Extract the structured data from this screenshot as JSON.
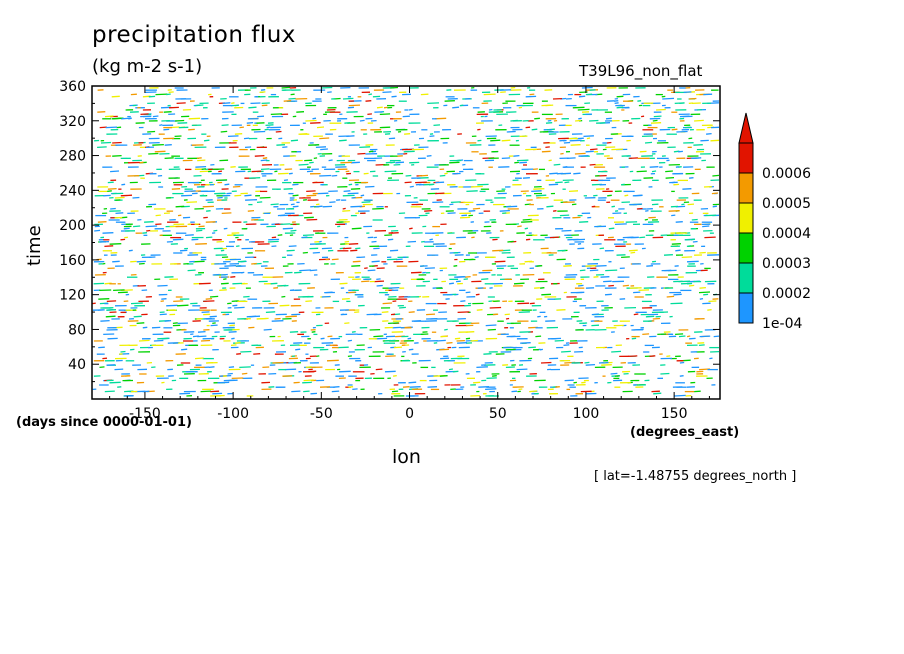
{
  "chart_data": {
    "type": "heatmap",
    "title": "precipitation flux",
    "units": "(kg m-2 s-1)",
    "experiment": "T39L96_non_flat",
    "xlabel": "lon",
    "ylabel": "time",
    "x_units": "(degrees_east)",
    "y_units": "(days since 0000-01-01)",
    "annotation": "[ lat=-1.48755 degrees_north ]",
    "xlim": [
      -180,
      176
    ],
    "ylim": [
      0,
      360
    ],
    "x_ticks": [
      -150,
      -100,
      -50,
      0,
      50,
      100,
      150
    ],
    "x_tick_labels": [
      "-150",
      "-100",
      "-50",
      "0",
      "50",
      "100",
      "150"
    ],
    "y_ticks": [
      40,
      80,
      120,
      160,
      200,
      240,
      280,
      320,
      360
    ],
    "y_tick_labels": [
      "40",
      "80",
      "120",
      "160",
      "200",
      "240",
      "280",
      "320",
      "360"
    ],
    "colorbar": {
      "levels": [
        0.0001,
        0.0002,
        0.0003,
        0.0004,
        0.0005,
        0.0006
      ],
      "level_labels": [
        "1e-04",
        "0.0002",
        "0.0003",
        "0.0004",
        "0.0005",
        "0.0006"
      ],
      "colors": [
        "#1e96ff",
        "#00dc9a",
        "#00d200",
        "#f0f000",
        "#f39a00",
        "#e11400"
      ],
      "extend": "max"
    }
  }
}
